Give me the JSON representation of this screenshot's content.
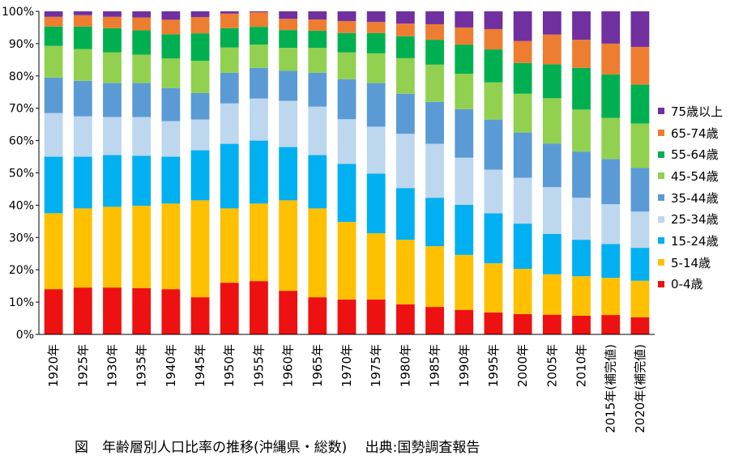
{
  "chart_data": {
    "type": "bar",
    "stacked": true,
    "percent": true,
    "categories": [
      "1920年",
      "1925年",
      "1930年",
      "1935年",
      "1940年",
      "1945年",
      "1950年",
      "1955年",
      "1960年",
      "1965年",
      "1970年",
      "1975年",
      "1980年",
      "1985年",
      "1990年",
      "1995年",
      "2000年",
      "2005年",
      "2010年",
      "2015年(補完値)",
      "2020年(補完値)"
    ],
    "ylim": [
      0,
      100
    ],
    "yticks": [
      "0%",
      "10%",
      "20%",
      "30%",
      "40%",
      "50%",
      "60%",
      "70%",
      "80%",
      "90%",
      "100%"
    ],
    "grid": false,
    "legend_position": "right",
    "series": [
      {
        "name": "0-4歳",
        "color": "#ee1111",
        "values": [
          14,
          14.5,
          14.5,
          14.3,
          14,
          11.5,
          16,
          16.5,
          13.5,
          11.5,
          10.8,
          10.8,
          9.3,
          8.5,
          7.6,
          6.8,
          6.3,
          6.1,
          5.8,
          6,
          5.3
        ]
      },
      {
        "name": "5-14歳",
        "color": "#ffc000",
        "values": [
          23.5,
          24.5,
          25,
          25.5,
          26.5,
          30,
          23,
          24,
          28,
          27.5,
          24,
          20.5,
          20,
          18.8,
          17,
          15.2,
          14,
          12.5,
          12.2,
          11.5,
          11.3
        ]
      },
      {
        "name": "15-24歳",
        "color": "#00b0f0",
        "values": [
          17.5,
          16,
          16,
          15.5,
          14.5,
          15.5,
          20,
          19.5,
          16.5,
          16.5,
          18,
          18.5,
          16,
          15,
          15.5,
          15.5,
          14,
          12.5,
          11.3,
          10.5,
          10.2
        ]
      },
      {
        "name": "25-34歳",
        "color": "#bdd7ee",
        "values": [
          13.5,
          12.5,
          11.8,
          12,
          11,
          9.5,
          12.5,
          13,
          14.3,
          15,
          13.8,
          14.5,
          16.8,
          16.7,
          14.6,
          13.5,
          14.2,
          14.5,
          13,
          12.3,
          11.2
        ]
      },
      {
        "name": "35-44歳",
        "color": "#5b9bd5",
        "values": [
          11,
          11,
          10.5,
          10.5,
          10.2,
          8.2,
          9.5,
          9.5,
          9.3,
          10.5,
          12.4,
          13.5,
          12.4,
          13,
          15,
          15.5,
          14,
          13.5,
          14.3,
          14,
          13.5
        ]
      },
      {
        "name": "45-54歳",
        "color": "#92d050",
        "values": [
          9.8,
          9.8,
          9.5,
          8.8,
          9.2,
          10,
          7.8,
          7.2,
          7.1,
          7.7,
          8.3,
          9.2,
          11,
          11.5,
          11,
          11.5,
          12,
          14,
          13,
          12.7,
          13.8
        ]
      },
      {
        "name": "55-64歳",
        "color": "#00b050",
        "values": [
          6,
          7,
          7.5,
          7.5,
          7.5,
          8.5,
          6,
          5.5,
          5.5,
          5.3,
          6,
          6.3,
          6.8,
          7.7,
          9,
          10.2,
          9.5,
          10.5,
          12.9,
          13.5,
          12
        ]
      },
      {
        "name": "65-74歳",
        "color": "#ed7d31",
        "values": [
          3,
          3.5,
          3.5,
          4,
          4.5,
          5,
          4.5,
          4.5,
          3.5,
          3.5,
          3.7,
          3.4,
          3.9,
          4.8,
          5.3,
          6.3,
          6.8,
          9.2,
          8.7,
          9.5,
          11.7
        ]
      },
      {
        "name": "75歳以上",
        "color": "#7030a0",
        "values": [
          1.7,
          1.2,
          1.7,
          1.9,
          2.6,
          1.8,
          0.7,
          0.3,
          2.3,
          2.5,
          3,
          3.3,
          3.8,
          4,
          5,
          5.5,
          9.2,
          7.2,
          8.8,
          10,
          11
        ]
      }
    ]
  },
  "caption": "図　年齢層別人口比率の推移(沖縄県・総数)　 出典:国勢調査報告"
}
